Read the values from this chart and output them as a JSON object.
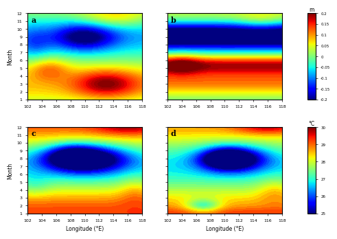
{
  "lon_range": [
    102,
    118
  ],
  "month_range": [
    1,
    12
  ],
  "lon_ticks": [
    102,
    104,
    106,
    108,
    110,
    112,
    114,
    116,
    118
  ],
  "month_ticks": [
    1,
    2,
    3,
    4,
    5,
    6,
    7,
    8,
    9,
    10,
    11,
    12
  ],
  "panels": [
    "a",
    "b",
    "c",
    "d"
  ],
  "colorbar_ab_label": "m",
  "colorbar_ab_ticks": [
    0.2,
    0.15,
    0.1,
    0.05,
    0,
    -0.05,
    -0.1,
    -0.15,
    -0.2
  ],
  "colorbar_cd_label": "°C",
  "colorbar_cd_ticks": [
    30,
    29,
    28,
    27,
    26,
    25
  ],
  "xlabel": "Longitude (°E)",
  "ylabel": "Month",
  "vmin_ab": -0.2,
  "vmax_ab": 0.2,
  "vmin_cd": 25,
  "vmax_cd": 30
}
